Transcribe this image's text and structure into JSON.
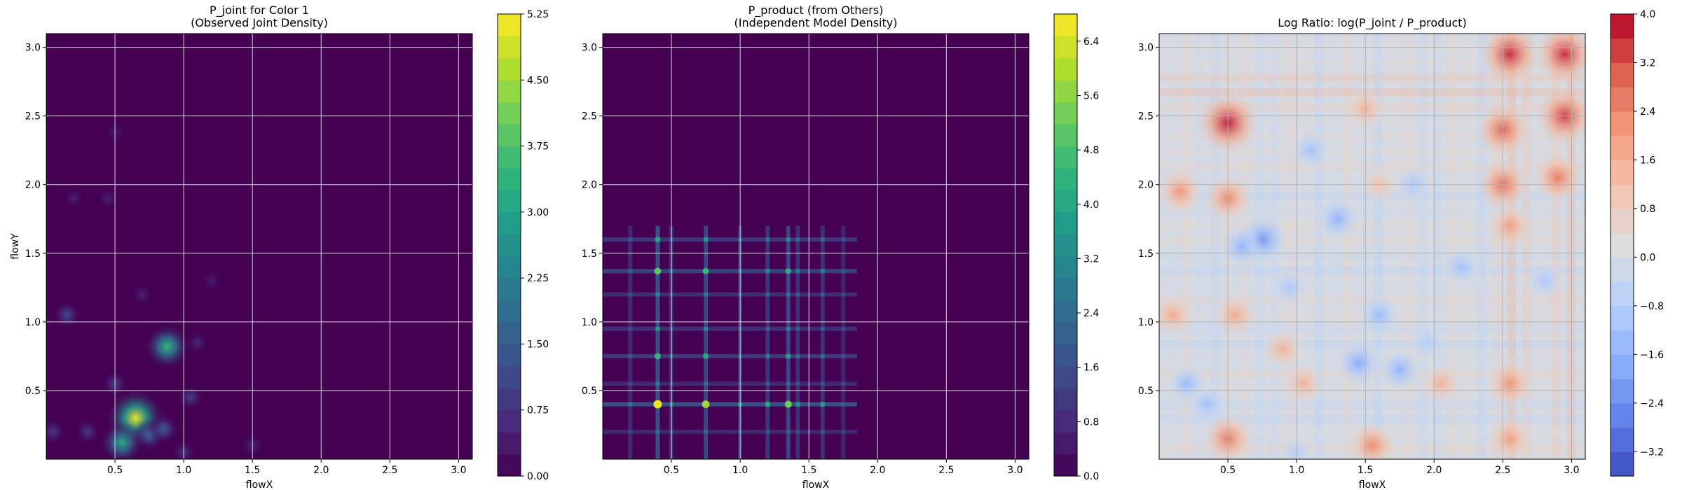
{
  "chart_data": [
    {
      "type": "heatmap",
      "title": "P_joint for Color 1",
      "subtitle": "(Observed Joint Density)",
      "xlabel": "flowX",
      "ylabel": "flowY",
      "xlim": [
        0,
        3.1
      ],
      "ylim": [
        0,
        3.1
      ],
      "xticks": [
        "0.5",
        "1.0",
        "1.5",
        "2.0",
        "2.5",
        "3.0"
      ],
      "yticks": [
        "0.5",
        "1.0",
        "1.5",
        "2.0",
        "2.5",
        "3.0"
      ],
      "grid": true,
      "colormap": "viridis",
      "colorbar": {
        "min": 0.0,
        "max": 5.25,
        "ticks": [
          "0.00",
          "0.75",
          "1.50",
          "2.25",
          "3.00",
          "3.75",
          "4.50",
          "5.25"
        ]
      },
      "blobs": [
        {
          "x": 0.65,
          "y": 0.3,
          "value": 5.1
        },
        {
          "x": 0.88,
          "y": 0.82,
          "value": 3.5
        },
        {
          "x": 0.55,
          "y": 0.12,
          "value": 3.2
        },
        {
          "x": 0.75,
          "y": 0.18,
          "value": 1.8
        },
        {
          "x": 0.85,
          "y": 0.22,
          "value": 1.6
        },
        {
          "x": 0.15,
          "y": 1.05,
          "value": 1.2
        },
        {
          "x": 0.5,
          "y": 0.55,
          "value": 1.0
        },
        {
          "x": 0.3,
          "y": 0.2,
          "value": 0.9
        },
        {
          "x": 0.05,
          "y": 0.2,
          "value": 0.9
        },
        {
          "x": 1.05,
          "y": 0.45,
          "value": 1.0
        },
        {
          "x": 1.0,
          "y": 0.05,
          "value": 0.8
        },
        {
          "x": 1.5,
          "y": 0.1,
          "value": 0.6
        },
        {
          "x": 0.2,
          "y": 1.9,
          "value": 0.5
        },
        {
          "x": 0.45,
          "y": 1.9,
          "value": 0.5
        },
        {
          "x": 0.5,
          "y": 2.38,
          "value": 0.4
        },
        {
          "x": 1.1,
          "y": 0.85,
          "value": 0.6
        },
        {
          "x": 0.7,
          "y": 1.2,
          "value": 0.5
        },
        {
          "x": 1.2,
          "y": 1.3,
          "value": 0.4
        }
      ]
    },
    {
      "type": "heatmap",
      "title": "P_product (from Others)",
      "subtitle": "(Independent Model Density)",
      "xlabel": "flowX",
      "ylabel": "",
      "xlim": [
        0,
        3.1
      ],
      "ylim": [
        0,
        3.1
      ],
      "xticks": [
        "0.5",
        "1.0",
        "1.5",
        "2.0",
        "2.5",
        "3.0"
      ],
      "yticks": [
        "0.5",
        "1.0",
        "1.5",
        "2.0",
        "2.5",
        "3.0"
      ],
      "grid": true,
      "colormap": "viridis",
      "colorbar": {
        "min": 0.0,
        "max": 6.8,
        "ticks": [
          "0.0",
          "0.8",
          "1.6",
          "2.4",
          "3.2",
          "4.0",
          "4.8",
          "5.6",
          "6.4"
        ]
      },
      "x_bands": [
        {
          "x": 0.4,
          "w": 1.0
        },
        {
          "x": 0.5,
          "w": 0.35
        },
        {
          "x": 0.75,
          "w": 0.85
        },
        {
          "x": 1.0,
          "w": 0.4
        },
        {
          "x": 1.2,
          "w": 0.5
        },
        {
          "x": 1.35,
          "w": 0.75
        },
        {
          "x": 1.42,
          "w": 0.4
        },
        {
          "x": 1.6,
          "w": 0.45
        },
        {
          "x": 1.75,
          "w": 0.15
        },
        {
          "x": 0.2,
          "w": 0.25
        }
      ],
      "y_bands": [
        {
          "y": 0.4,
          "w": 1.0
        },
        {
          "y": 0.55,
          "w": 0.3
        },
        {
          "y": 0.75,
          "w": 0.6
        },
        {
          "y": 0.95,
          "w": 0.4
        },
        {
          "y": 1.2,
          "w": 0.35
        },
        {
          "y": 1.37,
          "w": 0.7
        },
        {
          "y": 1.6,
          "w": 0.5
        },
        {
          "y": 0.2,
          "w": 0.25
        }
      ]
    },
    {
      "type": "heatmap",
      "title": "Log Ratio: log(P_joint / P_product)",
      "xlabel": "flowX",
      "ylabel": "",
      "xlim": [
        0,
        3.1
      ],
      "ylim": [
        0,
        3.1
      ],
      "xticks": [
        "0.5",
        "1.0",
        "1.5",
        "2.0",
        "2.5",
        "3.0"
      ],
      "yticks": [
        "0.5",
        "1.0",
        "1.5",
        "2.0",
        "2.5",
        "3.0"
      ],
      "grid": true,
      "colormap": "coolwarm",
      "colorbar": {
        "min": -3.6,
        "max": 4.0,
        "ticks": [
          "−3.2",
          "−2.4",
          "−1.6",
          "−0.8",
          "0.0",
          "0.8",
          "1.6",
          "2.4",
          "3.2",
          "4.0"
        ]
      },
      "hotspots": [
        {
          "x": 0.5,
          "y": 2.45,
          "value": 3.8
        },
        {
          "x": 2.55,
          "y": 2.95,
          "value": 3.6
        },
        {
          "x": 2.95,
          "y": 2.95,
          "value": 3.6
        },
        {
          "x": 2.95,
          "y": 2.5,
          "value": 3.4
        },
        {
          "x": 2.5,
          "y": 2.4,
          "value": 3.0
        },
        {
          "x": 2.5,
          "y": 2.0,
          "value": 2.8
        },
        {
          "x": 2.9,
          "y": 2.05,
          "value": 2.6
        },
        {
          "x": 0.15,
          "y": 1.95,
          "value": 2.2
        },
        {
          "x": 0.5,
          "y": 1.9,
          "value": 2.4
        },
        {
          "x": 2.55,
          "y": 1.7,
          "value": 2.0
        },
        {
          "x": 2.55,
          "y": 0.55,
          "value": 2.2
        },
        {
          "x": 2.55,
          "y": 0.15,
          "value": 2.0
        },
        {
          "x": 0.5,
          "y": 0.15,
          "value": 2.6
        },
        {
          "x": 1.55,
          "y": 0.1,
          "value": 2.4
        },
        {
          "x": 0.1,
          "y": 1.05,
          "value": 1.8
        },
        {
          "x": 0.55,
          "y": 1.05,
          "value": 1.8
        },
        {
          "x": 0.9,
          "y": 0.8,
          "value": 1.6
        },
        {
          "x": 1.05,
          "y": 0.55,
          "value": 1.6
        },
        {
          "x": 2.05,
          "y": 0.55,
          "value": 1.6
        },
        {
          "x": 1.5,
          "y": 2.55,
          "value": 1.6
        },
        {
          "x": 1.6,
          "y": 2.0,
          "value": 1.2
        },
        {
          "x": 0.75,
          "y": 1.6,
          "value": -2.2
        },
        {
          "x": 0.6,
          "y": 1.55,
          "value": -1.6
        },
        {
          "x": 1.3,
          "y": 1.75,
          "value": -1.6
        },
        {
          "x": 1.45,
          "y": 0.7,
          "value": -1.8
        },
        {
          "x": 1.75,
          "y": 0.65,
          "value": -1.6
        },
        {
          "x": 1.6,
          "y": 1.05,
          "value": -1.4
        },
        {
          "x": 0.2,
          "y": 0.55,
          "value": -1.4
        },
        {
          "x": 0.35,
          "y": 0.4,
          "value": -1.2
        },
        {
          "x": 1.1,
          "y": 2.25,
          "value": -1.2
        },
        {
          "x": 2.2,
          "y": 1.4,
          "value": -1.2
        },
        {
          "x": 1.85,
          "y": 2.0,
          "value": -1.0
        },
        {
          "x": 2.8,
          "y": 1.3,
          "value": -1.0
        },
        {
          "x": 1.95,
          "y": 0.85,
          "value": -0.8
        },
        {
          "x": 0.95,
          "y": 1.25,
          "value": -1.0
        },
        {
          "x": 1.0,
          "y": 0.05,
          "value": -0.8
        }
      ]
    }
  ]
}
